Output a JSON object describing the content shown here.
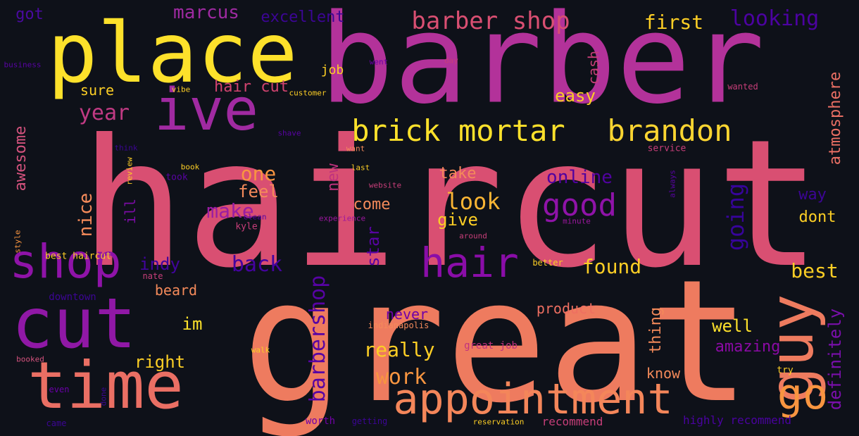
{
  "word_cloud": {
    "background": "#0e1119",
    "words": [
      {
        "text": "haircut",
        "color": "#d94f72"
      },
      {
        "text": "great",
        "color": "#ee7b5f"
      },
      {
        "text": "barber",
        "color": "#b3329a"
      },
      {
        "text": "place",
        "color": "#fde12b"
      },
      {
        "text": "ive",
        "color": "#a02aa1"
      },
      {
        "text": "cut",
        "color": "#9018a6"
      },
      {
        "text": "time",
        "color": "#ea6f64"
      },
      {
        "text": "shop",
        "color": "#8f13a8"
      },
      {
        "text": "appointment",
        "color": "#f4865a"
      },
      {
        "text": "guy",
        "color": "#ee7b5f"
      },
      {
        "text": "go",
        "color": "#f89540"
      },
      {
        "text": "hair",
        "color": "#8a0da8"
      },
      {
        "text": "brick mortar",
        "color": "#fde12b"
      },
      {
        "text": "brandon",
        "color": "#fcd531"
      },
      {
        "text": "barber shop",
        "color": "#d94f72"
      },
      {
        "text": "good",
        "color": "#8f13a8"
      },
      {
        "text": "looking",
        "color": "#4c02a1"
      },
      {
        "text": "first",
        "color": "#fcce25"
      },
      {
        "text": "marcus",
        "color": "#9e2aa1"
      },
      {
        "text": "excellent",
        "color": "#3c0595"
      },
      {
        "text": "got",
        "color": "#4a0aa0"
      },
      {
        "text": "going",
        "color": "#37049b"
      },
      {
        "text": "atmosphere",
        "color": "#ea6f64"
      },
      {
        "text": "barbershop",
        "color": "#5703a4"
      },
      {
        "text": "definitely",
        "color": "#7a0fab"
      },
      {
        "text": "make",
        "color": "#9a1da3"
      },
      {
        "text": "year",
        "color": "#c03a83"
      },
      {
        "text": "one",
        "color": "#f89540"
      },
      {
        "text": "look",
        "color": "#fbb534"
      },
      {
        "text": "back",
        "color": "#44039f"
      },
      {
        "text": "found",
        "color": "#fcce25"
      },
      {
        "text": "best",
        "color": "#fcce25"
      },
      {
        "text": "online",
        "color": "#50029f"
      },
      {
        "text": "hair cut",
        "color": "#d0436f"
      },
      {
        "text": "easy",
        "color": "#fcce25"
      },
      {
        "text": "cash",
        "color": "#c73e79"
      },
      {
        "text": "sure",
        "color": "#fcce25"
      },
      {
        "text": "job",
        "color": "#fcce25"
      },
      {
        "text": "awesome",
        "color": "#d3527d"
      },
      {
        "text": "nice",
        "color": "#f48a5a"
      },
      {
        "text": "feel",
        "color": "#f48a5a"
      },
      {
        "text": "ill",
        "color": "#7b0ba5"
      },
      {
        "text": "new",
        "color": "#c0327e"
      },
      {
        "text": "come",
        "color": "#f48a5a"
      },
      {
        "text": "give",
        "color": "#fcce25"
      },
      {
        "text": "take",
        "color": "#f48a5a"
      },
      {
        "text": "star",
        "color": "#5903a4"
      },
      {
        "text": "way",
        "color": "#3c0595"
      },
      {
        "text": "dont",
        "color": "#fcce25"
      },
      {
        "text": "indy",
        "color": "#41049d"
      },
      {
        "text": "beard",
        "color": "#f48a5a"
      },
      {
        "text": "im",
        "color": "#fde12b"
      },
      {
        "text": "right",
        "color": "#fcce25"
      },
      {
        "text": "really",
        "color": "#fcce25"
      },
      {
        "text": "work",
        "color": "#f89540"
      },
      {
        "text": "never",
        "color": "#6f00a8"
      },
      {
        "text": "product",
        "color": "#ee6f61"
      },
      {
        "text": "thing",
        "color": "#f48a5a"
      },
      {
        "text": "well",
        "color": "#fde12b"
      },
      {
        "text": "amazing",
        "color": "#8b0aa5"
      },
      {
        "text": "know",
        "color": "#f48a5a"
      },
      {
        "text": "highly recommend",
        "color": "#4a02a0"
      },
      {
        "text": "recommend",
        "color": "#c73e79"
      },
      {
        "text": "reservation",
        "color": "#fcce25"
      },
      {
        "text": "worth",
        "color": "#7201a8"
      },
      {
        "text": "getting",
        "color": "#3c0595"
      },
      {
        "text": "came",
        "color": "#3c0595"
      },
      {
        "text": "done",
        "color": "#3c0595"
      },
      {
        "text": "even",
        "color": "#6a00a8"
      },
      {
        "text": "booked",
        "color": "#d3527d"
      },
      {
        "text": "walk",
        "color": "#fcce25"
      },
      {
        "text": "great job",
        "color": "#c0327e"
      },
      {
        "text": "indianapolis",
        "color": "#f48a5a"
      },
      {
        "text": "downtown",
        "color": "#3c0595"
      },
      {
        "text": "nate",
        "color": "#c73e79"
      },
      {
        "text": "best haircut",
        "color": "#fcce25"
      },
      {
        "text": "style",
        "color": "#f89540"
      },
      {
        "text": "kyle",
        "color": "#c73e79"
      },
      {
        "text": "clean",
        "color": "#5903a4"
      },
      {
        "text": "experience",
        "color": "#9c179e"
      },
      {
        "text": "around",
        "color": "#c73e79"
      },
      {
        "text": "better",
        "color": "#fcce25"
      },
      {
        "text": "minute",
        "color": "#9c179e"
      },
      {
        "text": "always",
        "color": "#5903a4"
      },
      {
        "text": "service",
        "color": "#c73e79"
      },
      {
        "text": "last",
        "color": "#fcce25"
      },
      {
        "text": "website",
        "color": "#c73e79"
      },
      {
        "text": "want",
        "color": "#f48a5a"
      },
      {
        "text": "took",
        "color": "#5903a4"
      },
      {
        "text": "book",
        "color": "#fcce25"
      },
      {
        "text": "review",
        "color": "#fcce25"
      },
      {
        "text": "think",
        "color": "#3c0595"
      },
      {
        "text": "shave",
        "color": "#5903a4"
      },
      {
        "text": "vibe",
        "color": "#fcce25"
      },
      {
        "text": "customer",
        "color": "#fcce25"
      },
      {
        "text": "wanted",
        "color": "#c73e79"
      },
      {
        "text": "day",
        "color": "#c73e79"
      },
      {
        "text": "went",
        "color": "#6a00a8"
      },
      {
        "text": "business",
        "color": "#5903a4"
      },
      {
        "text": "try",
        "color": "#fcce25"
      }
    ]
  }
}
